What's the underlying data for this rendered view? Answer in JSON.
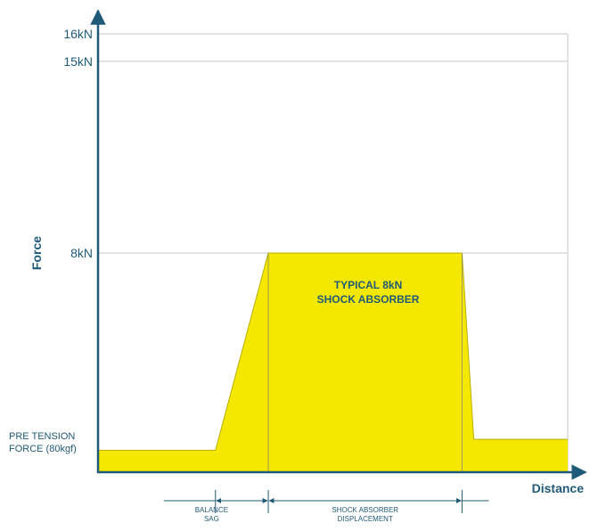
{
  "chart_data": {
    "type": "area",
    "title": "",
    "xlabel": "Distance",
    "ylabel": "Force",
    "ylim": [
      0,
      16
    ],
    "y_ticks": [
      {
        "value": 16,
        "label": "16kN"
      },
      {
        "value": 15,
        "label": "15kN"
      },
      {
        "value": 8,
        "label": "8kN"
      }
    ],
    "pre_tension_label": [
      "PRE TENSION",
      "FORCE (80kgf)"
    ],
    "series": [
      {
        "points": [
          {
            "x": 0,
            "y": 0.8
          },
          {
            "x": 1,
            "y": 0.8
          },
          {
            "x": 1.45,
            "y": 8
          },
          {
            "x": 3.1,
            "y": 8
          },
          {
            "x": 3.2,
            "y": 1.2
          },
          {
            "x": 4,
            "y": 1.2
          }
        ]
      }
    ],
    "fill_color": "#f5e800",
    "fill_edge_color": "#b8ae00",
    "axis_color": "#1f5a78",
    "grid_color": "#c8c8c8",
    "annotation": {
      "lines": [
        "TYPICAL 8kN",
        "SHOCK ABSORBER"
      ],
      "x": 2.3,
      "y": 6.7
    },
    "dimensions": [
      {
        "from": 1,
        "to": 1.45,
        "lines": [
          "BALANCE",
          "SAG"
        ]
      },
      {
        "from": 1.45,
        "to": 3.1,
        "lines": [
          "SHOCK ABSORBER",
          "DISPLACEMENT"
        ]
      }
    ]
  }
}
